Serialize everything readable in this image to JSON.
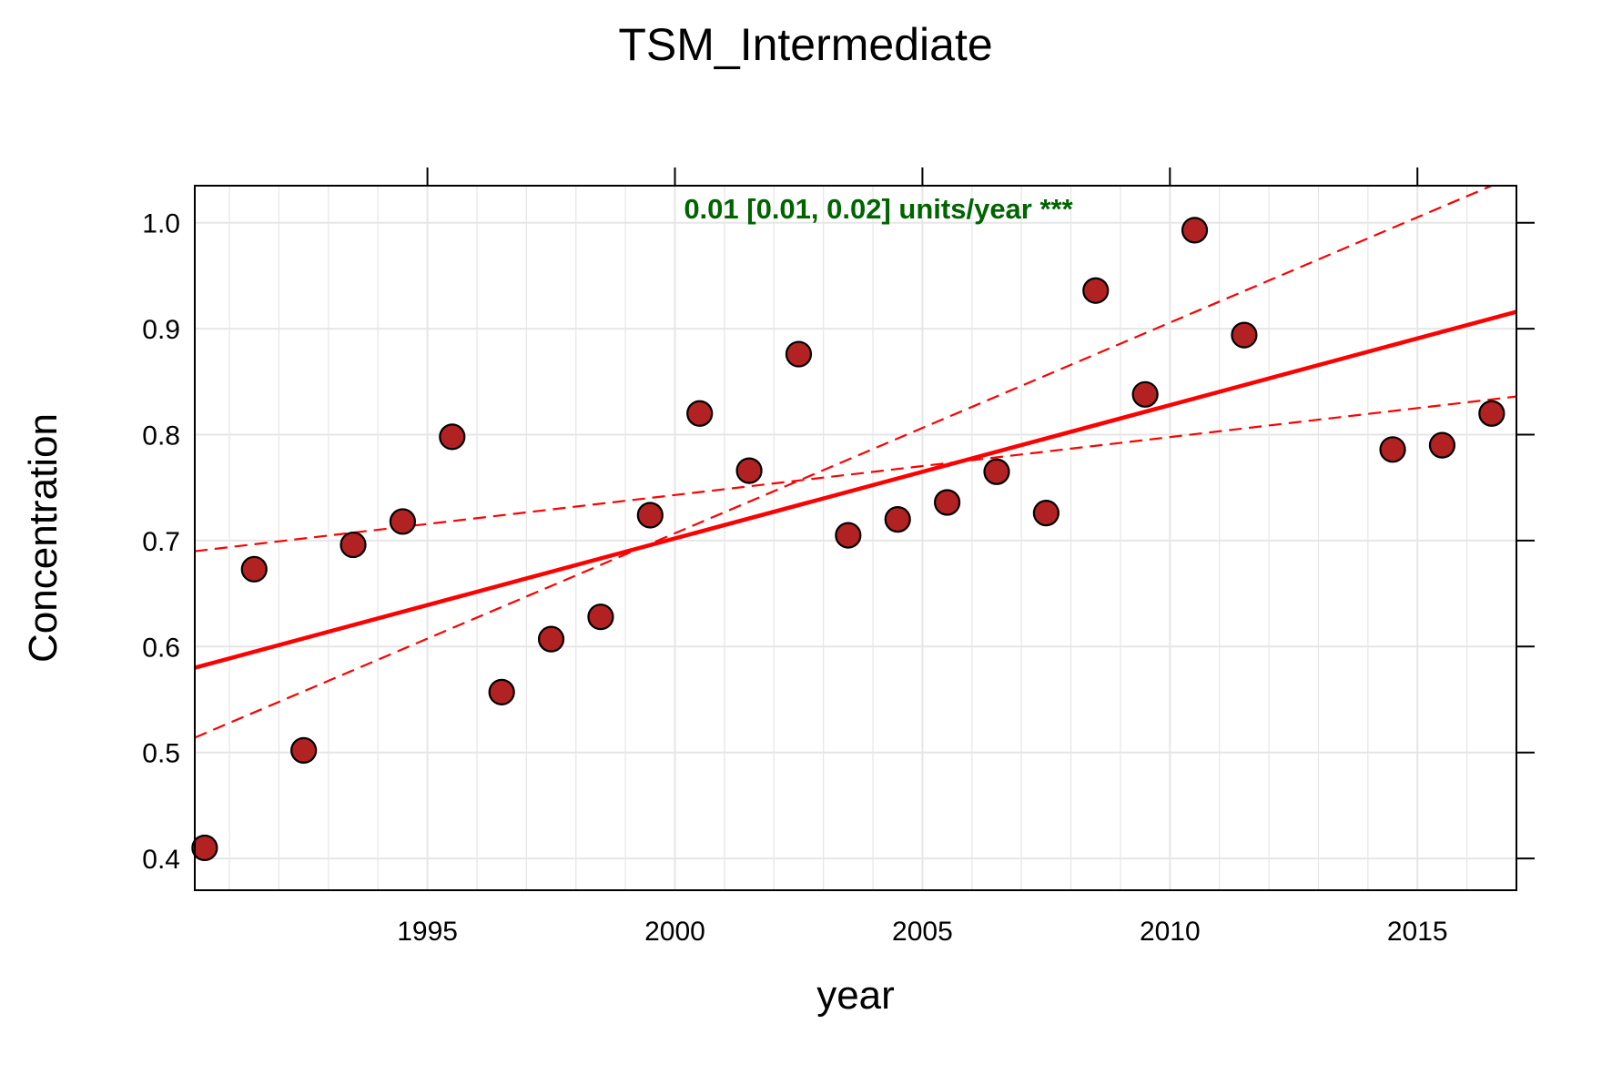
{
  "chart_data": {
    "type": "scatter",
    "title": "TSM_Intermediate",
    "xlabel": "year",
    "ylabel": "Concentration",
    "xlim": [
      1990.3,
      2017.0
    ],
    "ylim": [
      0.37,
      1.035
    ],
    "x_ticks": [
      1995,
      2000,
      2005,
      2010,
      2015
    ],
    "x_tick_labels": [
      "1995",
      "2000",
      "2005",
      "2010",
      "2015"
    ],
    "y_ticks": [
      0.4,
      0.5,
      0.6,
      0.7,
      0.8,
      0.9,
      1.0
    ],
    "y_tick_labels": [
      "0.4",
      "0.5",
      "0.6",
      "0.7",
      "0.8",
      "0.9",
      "1.0"
    ],
    "grid": true,
    "annotation": "0.01 [0.01, 0.02] units/year ***",
    "colors": {
      "points_fill": "#b22222",
      "points_stroke": "#000000",
      "trend": "#ff0000",
      "annotation": "#006400",
      "grid": "#e6e6e6"
    },
    "series": [
      {
        "type": "scatter",
        "x": [
          1990.5,
          1991.5,
          1992.5,
          1993.5,
          1994.5,
          1995.5,
          1996.5,
          1997.5,
          1998.5,
          1999.5,
          2000.5,
          2001.5,
          2002.5,
          2003.5,
          2004.5,
          2005.5,
          2006.5,
          2007.5,
          2008.5,
          2009.5,
          2010.5,
          2011.5,
          2014.5,
          2015.5,
          2016.5
        ],
        "y": [
          0.41,
          0.673,
          0.502,
          0.696,
          0.718,
          0.798,
          0.557,
          0.607,
          0.628,
          0.724,
          0.82,
          0.766,
          0.876,
          0.705,
          0.72,
          0.736,
          0.765,
          0.726,
          0.936,
          0.838,
          0.993,
          0.894,
          0.786,
          0.79,
          0.82
        ]
      },
      {
        "type": "line",
        "style": "solid",
        "x": [
          1990.3,
          2017.0
        ],
        "y": [
          0.58,
          0.916
        ]
      },
      {
        "type": "line",
        "style": "dashed",
        "x": [
          1990.3,
          2017.0
        ],
        "y": [
          0.69,
          0.836
        ]
      },
      {
        "type": "line",
        "style": "dashed",
        "x": [
          1990.3,
          2016.5
        ],
        "y": [
          0.514,
          1.035
        ]
      }
    ]
  }
}
